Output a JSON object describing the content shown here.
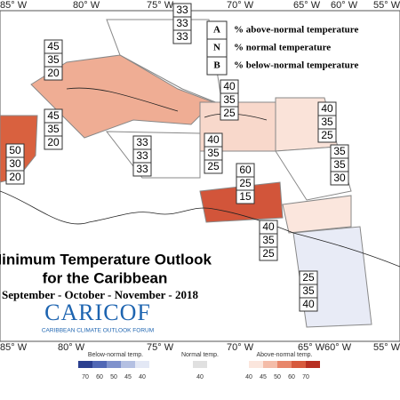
{
  "map": {
    "top_longitudes": [
      "85° W",
      "80° W",
      "75° W",
      "70° W",
      "65° W",
      "60° W",
      "55° W"
    ],
    "bottom_longitudes": [
      "85° W",
      "80° W",
      "75° W",
      "70° W",
      "65° W",
      "60° W",
      "55° W"
    ],
    "legend": [
      {
        "key": "A",
        "text": "% above-normal temperature"
      },
      {
        "key": "N",
        "text": "% normal temperature"
      },
      {
        "key": "B",
        "text": "% below-normal temperature"
      }
    ],
    "regions": [
      {
        "above": 45,
        "normal": 35,
        "below": 20
      },
      {
        "above": 33,
        "normal": 33,
        "below": 33
      },
      {
        "above": 40,
        "normal": 35,
        "below": 25
      },
      {
        "above": 40,
        "normal": 35,
        "below": 25
      },
      {
        "above": 45,
        "normal": 35,
        "below": 20
      },
      {
        "above": 50,
        "normal": 30,
        "below": 20
      },
      {
        "above": 33,
        "normal": 33,
        "below": 33
      },
      {
        "above": 40,
        "normal": 35,
        "below": 25
      },
      {
        "above": 60,
        "normal": 25,
        "below": 15
      },
      {
        "above": 35,
        "normal": 35,
        "below": 30
      },
      {
        "above": 40,
        "normal": 35,
        "below": 25
      },
      {
        "above": 25,
        "normal": 35,
        "below": 40
      }
    ],
    "title": "Minimum Temperature Outlook",
    "subtitle": "for the Caribbean",
    "period": "September - October - November - 2018",
    "logo": "CARICOF",
    "logo_caption": "CARIBBEAN CLIMATE OUTLOOK FORUM",
    "colorbar": {
      "below_title": "Below-normal temp.",
      "below_ticks": [
        70,
        60,
        50,
        45,
        40
      ],
      "normal_title": "Normal temp.",
      "normal_ticks": [
        40
      ],
      "above_title": "Above-normal temp.",
      "above_ticks": [
        40,
        45,
        50,
        60,
        70
      ]
    }
  }
}
